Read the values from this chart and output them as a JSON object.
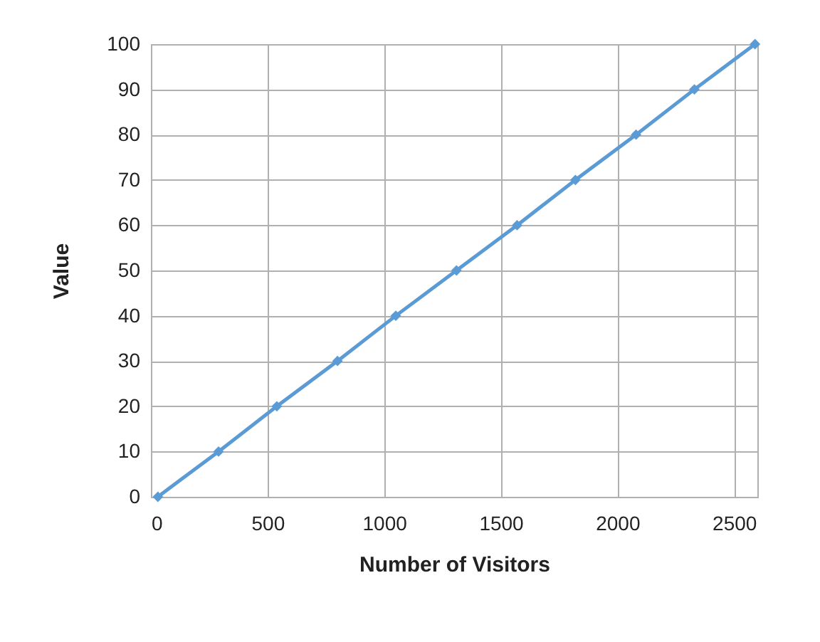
{
  "chart_data": {
    "type": "line",
    "xlabel": "Number of Visitors",
    "ylabel": "Value",
    "x": [
      30,
      290,
      540,
      800,
      1050,
      1310,
      1570,
      1820,
      2080,
      2330,
      2590
    ],
    "series": [
      {
        "color": "#5b9bd5",
        "values": [
          0,
          10,
          20,
          30,
          40,
          50,
          60,
          70,
          80,
          90,
          100
        ]
      }
    ],
    "xlim": [
      0,
      2600
    ],
    "xticks": [
      0,
      500,
      1000,
      1500,
      2000,
      2500
    ],
    "ylim": [
      0,
      100
    ],
    "yticks": [
      0,
      10,
      20,
      30,
      40,
      50,
      60,
      70,
      80,
      90,
      100
    ],
    "grid": true,
    "marker": "diamond"
  }
}
